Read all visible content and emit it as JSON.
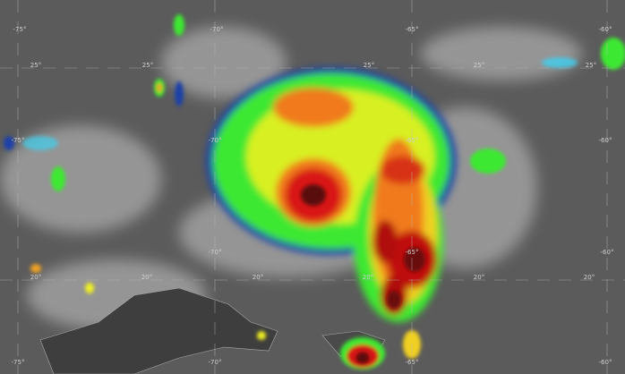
{
  "image": {
    "colors": {
      "background": "#5b5b5b",
      "cloud": "#d8d8d8",
      "blue": "#1a3fa8",
      "cyan": "#3fd0f0",
      "green": "#3ee830",
      "yellow": "#f0f020",
      "orange": "#f07a1a",
      "red": "#d81818",
      "darkred": "#5a0a0a"
    }
  },
  "graticule": {
    "lon_labels_top": [
      "-75°",
      "-70°",
      "-65°",
      "-60°"
    ],
    "lon_labels_mid": [
      "-75°",
      "-70°",
      "-65°",
      "-60°"
    ],
    "lon_labels_low": [
      "-70°",
      "-65°",
      "-60°"
    ],
    "lon_labels_bottom": [
      "-75°",
      "-70°",
      "-65°",
      "-60°"
    ],
    "lat25_labels": [
      "25°",
      "25°",
      "25°",
      "25°",
      "25°"
    ],
    "lat20_labels": [
      "20°",
      "20°",
      "20°",
      "20°",
      "20°",
      "20°"
    ]
  }
}
